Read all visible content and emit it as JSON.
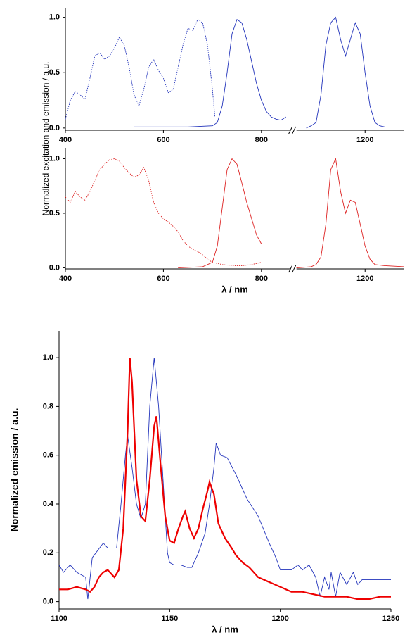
{
  "chart_data": [
    {
      "type": "line",
      "ylabel": "Normalized excitation and emission / a.u.",
      "xlim": [
        400,
        1280
      ],
      "x_break": [
        860,
        1060
      ],
      "xticks": [
        400,
        600,
        800,
        1200
      ],
      "ylim": [
        -0.02,
        1.08
      ],
      "yticks": [
        {
          "value": 0,
          "label": "0.0"
        },
        0.5,
        {
          "value": 1,
          "label": "1.0"
        }
      ],
      "series": [
        {
          "color": "#2233bb",
          "style": "dotted",
          "x": [
            400,
            410,
            420,
            430,
            440,
            450,
            460,
            470,
            480,
            490,
            500,
            510,
            520,
            530,
            540,
            550,
            560,
            570,
            580,
            590,
            600,
            610,
            620,
            630,
            640,
            650,
            660,
            670,
            680,
            690,
            700,
            705
          ],
          "values": [
            0.08,
            0.25,
            0.33,
            0.3,
            0.26,
            0.45,
            0.65,
            0.68,
            0.62,
            0.65,
            0.72,
            0.82,
            0.75,
            0.55,
            0.3,
            0.2,
            0.35,
            0.55,
            0.62,
            0.52,
            0.45,
            0.32,
            0.35,
            0.55,
            0.75,
            0.9,
            0.88,
            0.98,
            0.95,
            0.75,
            0.35,
            0.1
          ]
        },
        {
          "color": "#2233bb",
          "style": "solid",
          "x": [
            540,
            600,
            650,
            700,
            710,
            720,
            730,
            740,
            750,
            760,
            770,
            780,
            790,
            800,
            810,
            820,
            830,
            840,
            850
          ],
          "values": [
            0.01,
            0.01,
            0.01,
            0.02,
            0.05,
            0.2,
            0.5,
            0.85,
            0.98,
            0.95,
            0.8,
            0.6,
            0.4,
            0.25,
            0.15,
            0.1,
            0.08,
            0.07,
            0.1
          ]
        },
        {
          "color": "#2233bb",
          "style": "solid",
          "x": [
            1080,
            1090,
            1100,
            1110,
            1120,
            1130,
            1140,
            1150,
            1160,
            1170,
            1180,
            1190,
            1200,
            1210,
            1220,
            1230,
            1240
          ],
          "values": [
            0,
            0.02,
            0.05,
            0.3,
            0.75,
            0.95,
            1.0,
            0.8,
            0.65,
            0.8,
            0.95,
            0.85,
            0.5,
            0.2,
            0.05,
            0.02,
            0.01
          ]
        }
      ]
    },
    {
      "type": "line",
      "xlabel": "λ / nm",
      "xlim": [
        400,
        1280
      ],
      "x_break": [
        860,
        1060
      ],
      "xticks": [
        400,
        600,
        800,
        1200
      ],
      "ylim": [
        -0.01,
        1.1
      ],
      "yticks": [
        {
          "value": 0,
          "label": "0.0"
        },
        0.5,
        {
          "value": 1,
          "label": "1.0"
        }
      ],
      "series": [
        {
          "color": "#dd2222",
          "style": "dotted",
          "x": [
            400,
            410,
            420,
            430,
            440,
            450,
            460,
            470,
            480,
            490,
            500,
            510,
            520,
            530,
            540,
            550,
            560,
            570,
            580,
            590,
            600,
            610,
            620,
            630,
            640,
            650,
            660,
            670,
            680,
            690,
            700,
            720,
            740,
            760,
            780,
            800
          ],
          "values": [
            0.65,
            0.6,
            0.7,
            0.65,
            0.62,
            0.7,
            0.8,
            0.9,
            0.95,
            0.99,
            1.0,
            0.98,
            0.92,
            0.87,
            0.83,
            0.85,
            0.92,
            0.8,
            0.6,
            0.5,
            0.45,
            0.42,
            0.38,
            0.33,
            0.25,
            0.2,
            0.17,
            0.15,
            0.12,
            0.08,
            0.05,
            0.03,
            0.02,
            0.02,
            0.03,
            0.05
          ]
        },
        {
          "color": "#dd2222",
          "style": "solid",
          "x": [
            630,
            680,
            700,
            710,
            720,
            730,
            740,
            750,
            760,
            770,
            780,
            790,
            800
          ],
          "values": [
            0,
            0.01,
            0.05,
            0.2,
            0.55,
            0.9,
            1.0,
            0.95,
            0.78,
            0.6,
            0.45,
            0.3,
            0.22
          ]
        },
        {
          "color": "#dd2222",
          "style": "solid",
          "x": [
            1060,
            1090,
            1100,
            1110,
            1120,
            1130,
            1140,
            1150,
            1160,
            1170,
            1180,
            1190,
            1200,
            1210,
            1220,
            1240,
            1280
          ],
          "values": [
            0,
            0.01,
            0.03,
            0.1,
            0.4,
            0.9,
            1.0,
            0.7,
            0.5,
            0.62,
            0.6,
            0.4,
            0.2,
            0.08,
            0.03,
            0.02,
            0.01
          ]
        }
      ]
    },
    {
      "type": "line",
      "xlabel": "λ / nm",
      "ylabel": "Normalized emission / a.u.",
      "xlim": [
        1100,
        1250
      ],
      "xticks": [
        1100,
        1150,
        1200,
        1250
      ],
      "ylim": [
        -0.03,
        1.11
      ],
      "yticks": [
        {
          "value": 0,
          "label": "0.0"
        },
        0.2,
        0.4,
        0.6,
        0.8,
        {
          "value": 1,
          "label": "1.0"
        }
      ],
      "series": [
        {
          "color": "#2233bb",
          "style": "thin",
          "x": [
            1100,
            1102,
            1105,
            1108,
            1112,
            1113,
            1115,
            1120,
            1122,
            1126,
            1128,
            1130,
            1131,
            1133,
            1135,
            1137,
            1139,
            1141,
            1143,
            1145,
            1147,
            1149,
            1150,
            1152,
            1155,
            1158,
            1160,
            1163,
            1166,
            1168,
            1170,
            1171,
            1173,
            1176,
            1180,
            1185,
            1190,
            1195,
            1198,
            1200,
            1205,
            1208,
            1210,
            1213,
            1216,
            1218,
            1220,
            1222,
            1223,
            1225,
            1227,
            1230,
            1233,
            1235,
            1237,
            1240,
            1250
          ],
          "values": [
            0.15,
            0.12,
            0.15,
            0.12,
            0.1,
            0.01,
            0.18,
            0.24,
            0.22,
            0.22,
            0.4,
            0.6,
            0.68,
            0.55,
            0.4,
            0.34,
            0.4,
            0.8,
            1.0,
            0.8,
            0.5,
            0.2,
            0.16,
            0.15,
            0.15,
            0.14,
            0.14,
            0.2,
            0.28,
            0.4,
            0.55,
            0.65,
            0.6,
            0.59,
            0.52,
            0.42,
            0.35,
            0.24,
            0.18,
            0.13,
            0.13,
            0.15,
            0.13,
            0.15,
            0.1,
            0.02,
            0.1,
            0.05,
            0.12,
            0.02,
            0.12,
            0.07,
            0.12,
            0.07,
            0.09,
            0.09,
            0.09
          ]
        },
        {
          "color": "#ee0000",
          "style": "thick",
          "x": [
            1100,
            1104,
            1108,
            1112,
            1114,
            1116,
            1118,
            1120,
            1122,
            1125,
            1127,
            1129,
            1131,
            1132,
            1133,
            1135,
            1137,
            1139,
            1141,
            1143,
            1144,
            1146,
            1148,
            1150,
            1152,
            1154,
            1156,
            1157,
            1159,
            1161,
            1163,
            1165,
            1167,
            1168,
            1170,
            1172,
            1175,
            1178,
            1180,
            1183,
            1186,
            1190,
            1195,
            1200,
            1205,
            1210,
            1215,
            1220,
            1225,
            1230,
            1235,
            1240,
            1245,
            1250
          ],
          "values": [
            0.05,
            0.05,
            0.06,
            0.05,
            0.04,
            0.06,
            0.1,
            0.12,
            0.13,
            0.1,
            0.13,
            0.3,
            0.7,
            1.0,
            0.9,
            0.5,
            0.35,
            0.33,
            0.5,
            0.72,
            0.76,
            0.55,
            0.35,
            0.25,
            0.24,
            0.3,
            0.35,
            0.37,
            0.3,
            0.26,
            0.3,
            0.38,
            0.45,
            0.49,
            0.44,
            0.32,
            0.26,
            0.22,
            0.19,
            0.16,
            0.14,
            0.1,
            0.08,
            0.06,
            0.04,
            0.04,
            0.03,
            0.02,
            0.02,
            0.02,
            0.01,
            0.01,
            0.02,
            0.02
          ]
        }
      ]
    }
  ]
}
